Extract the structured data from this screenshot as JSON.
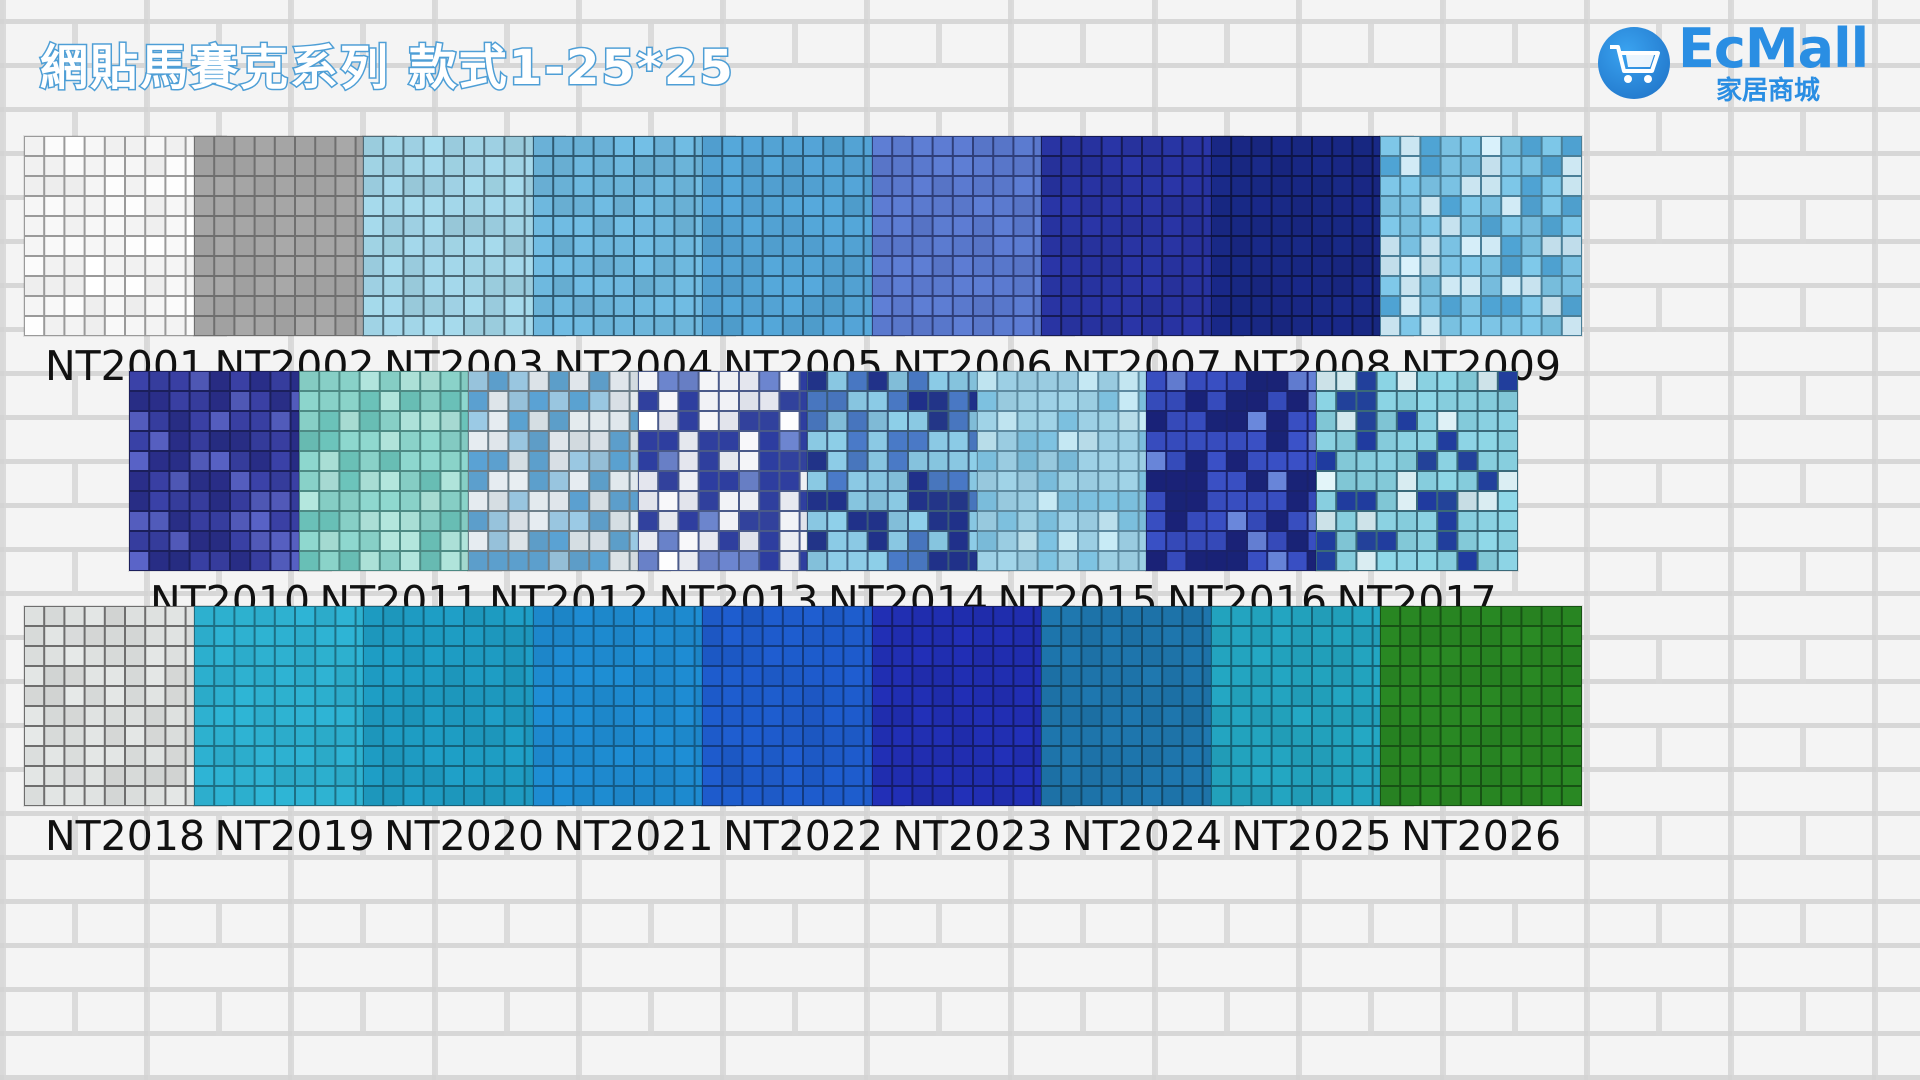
{
  "title": "網貼馬賽克系列  款式1-25*25",
  "logo": {
    "brand": "EcMall",
    "subtitle": "家居商城",
    "icon": "shopping-cart-icon",
    "color": "#2a8ee3"
  },
  "rows": [
    [
      {
        "code": "NT2001",
        "base": "#ffffff",
        "grout": "#9a9a9a",
        "accents": []
      },
      {
        "code": "NT2002",
        "base": "#a9a9a9",
        "grout": "#6f6f6f",
        "accents": []
      },
      {
        "code": "NT2003",
        "base": "#a7dcee",
        "grout": "#4d6a77",
        "accents": []
      },
      {
        "code": "NT2004",
        "base": "#73bfe6",
        "grout": "#2f5a72",
        "accents": []
      },
      {
        "code": "NT2005",
        "base": "#56a9dc",
        "grout": "#2b5a78",
        "accents": []
      },
      {
        "code": "NT2006",
        "base": "#5f7fd6",
        "grout": "#2f3f7a",
        "accents": []
      },
      {
        "code": "NT2007",
        "base": "#2a36a8",
        "grout": "#151a55",
        "accents": []
      },
      {
        "code": "NT2008",
        "base": "#1a2a8a",
        "grout": "#0d1548",
        "accents": []
      },
      {
        "code": "NT2009",
        "base": "#7fc9ea",
        "grout": "#4a7f98",
        "accents": [
          "#d9f1fb",
          "#4fa5d6"
        ]
      }
    ],
    [
      {
        "code": "NT2010",
        "base": "#3b42a8",
        "grout": "#1b1f5c",
        "accents": [
          "#5a64c8",
          "#2a2f8a"
        ]
      },
      {
        "code": "NT2011",
        "base": "#8fd8cf",
        "grout": "#4d8a84",
        "accents": [
          "#b4e7de",
          "#6cc4bb"
        ]
      },
      {
        "code": "NT2012",
        "base": "#e8eef2",
        "grout": "#6d7f8a",
        "accents": [
          "#5aa3d4",
          "#9ccbe6"
        ]
      },
      {
        "code": "NT2013",
        "base": "#ffffff",
        "grout": "#4a5a8a",
        "accents": [
          "#2d3da0",
          "#6d86d0"
        ]
      },
      {
        "code": "NT2014",
        "base": "#8fd0ea",
        "grout": "#3a5a7a",
        "accents": [
          "#1f2f8a",
          "#4a7ac8"
        ]
      },
      {
        "code": "NT2015",
        "base": "#a3d6ea",
        "grout": "#5d8aa0",
        "accents": [
          "#7ec3e2",
          "#c8ebf6"
        ]
      },
      {
        "code": "NT2016",
        "base": "#3b52c8",
        "grout": "#1a226a",
        "accents": [
          "#1a2378",
          "#6d8be0"
        ]
      },
      {
        "code": "NT2017",
        "base": "#8fd8e8",
        "grout": "#3a6a7a",
        "accents": [
          "#1f3aa0",
          "#e6f7fb"
        ]
      }
    ],
    [
      {
        "code": "NT2018",
        "base": "#e6e9e8",
        "grout": "#6e6e6e",
        "accents": []
      },
      {
        "code": "NT2019",
        "base": "#2fb6d6",
        "grout": "#1d6f84",
        "accents": []
      },
      {
        "code": "NT2020",
        "base": "#1fa0c8",
        "grout": "#14637c",
        "accents": []
      },
      {
        "code": "NT2021",
        "base": "#1f8fd6",
        "grout": "#145a86",
        "accents": []
      },
      {
        "code": "NT2022",
        "base": "#1f5ed0",
        "grout": "#123a80",
        "accents": []
      },
      {
        "code": "NT2023",
        "base": "#2230b8",
        "grout": "#141c6a",
        "accents": []
      },
      {
        "code": "NT2024",
        "base": "#1f78b0",
        "grout": "#124868",
        "accents": []
      },
      {
        "code": "NT2025",
        "base": "#24a8c4",
        "grout": "#156276",
        "accents": []
      },
      {
        "code": "NT2026",
        "base": "#2a8a24",
        "grout": "#175214",
        "accents": []
      }
    ]
  ]
}
